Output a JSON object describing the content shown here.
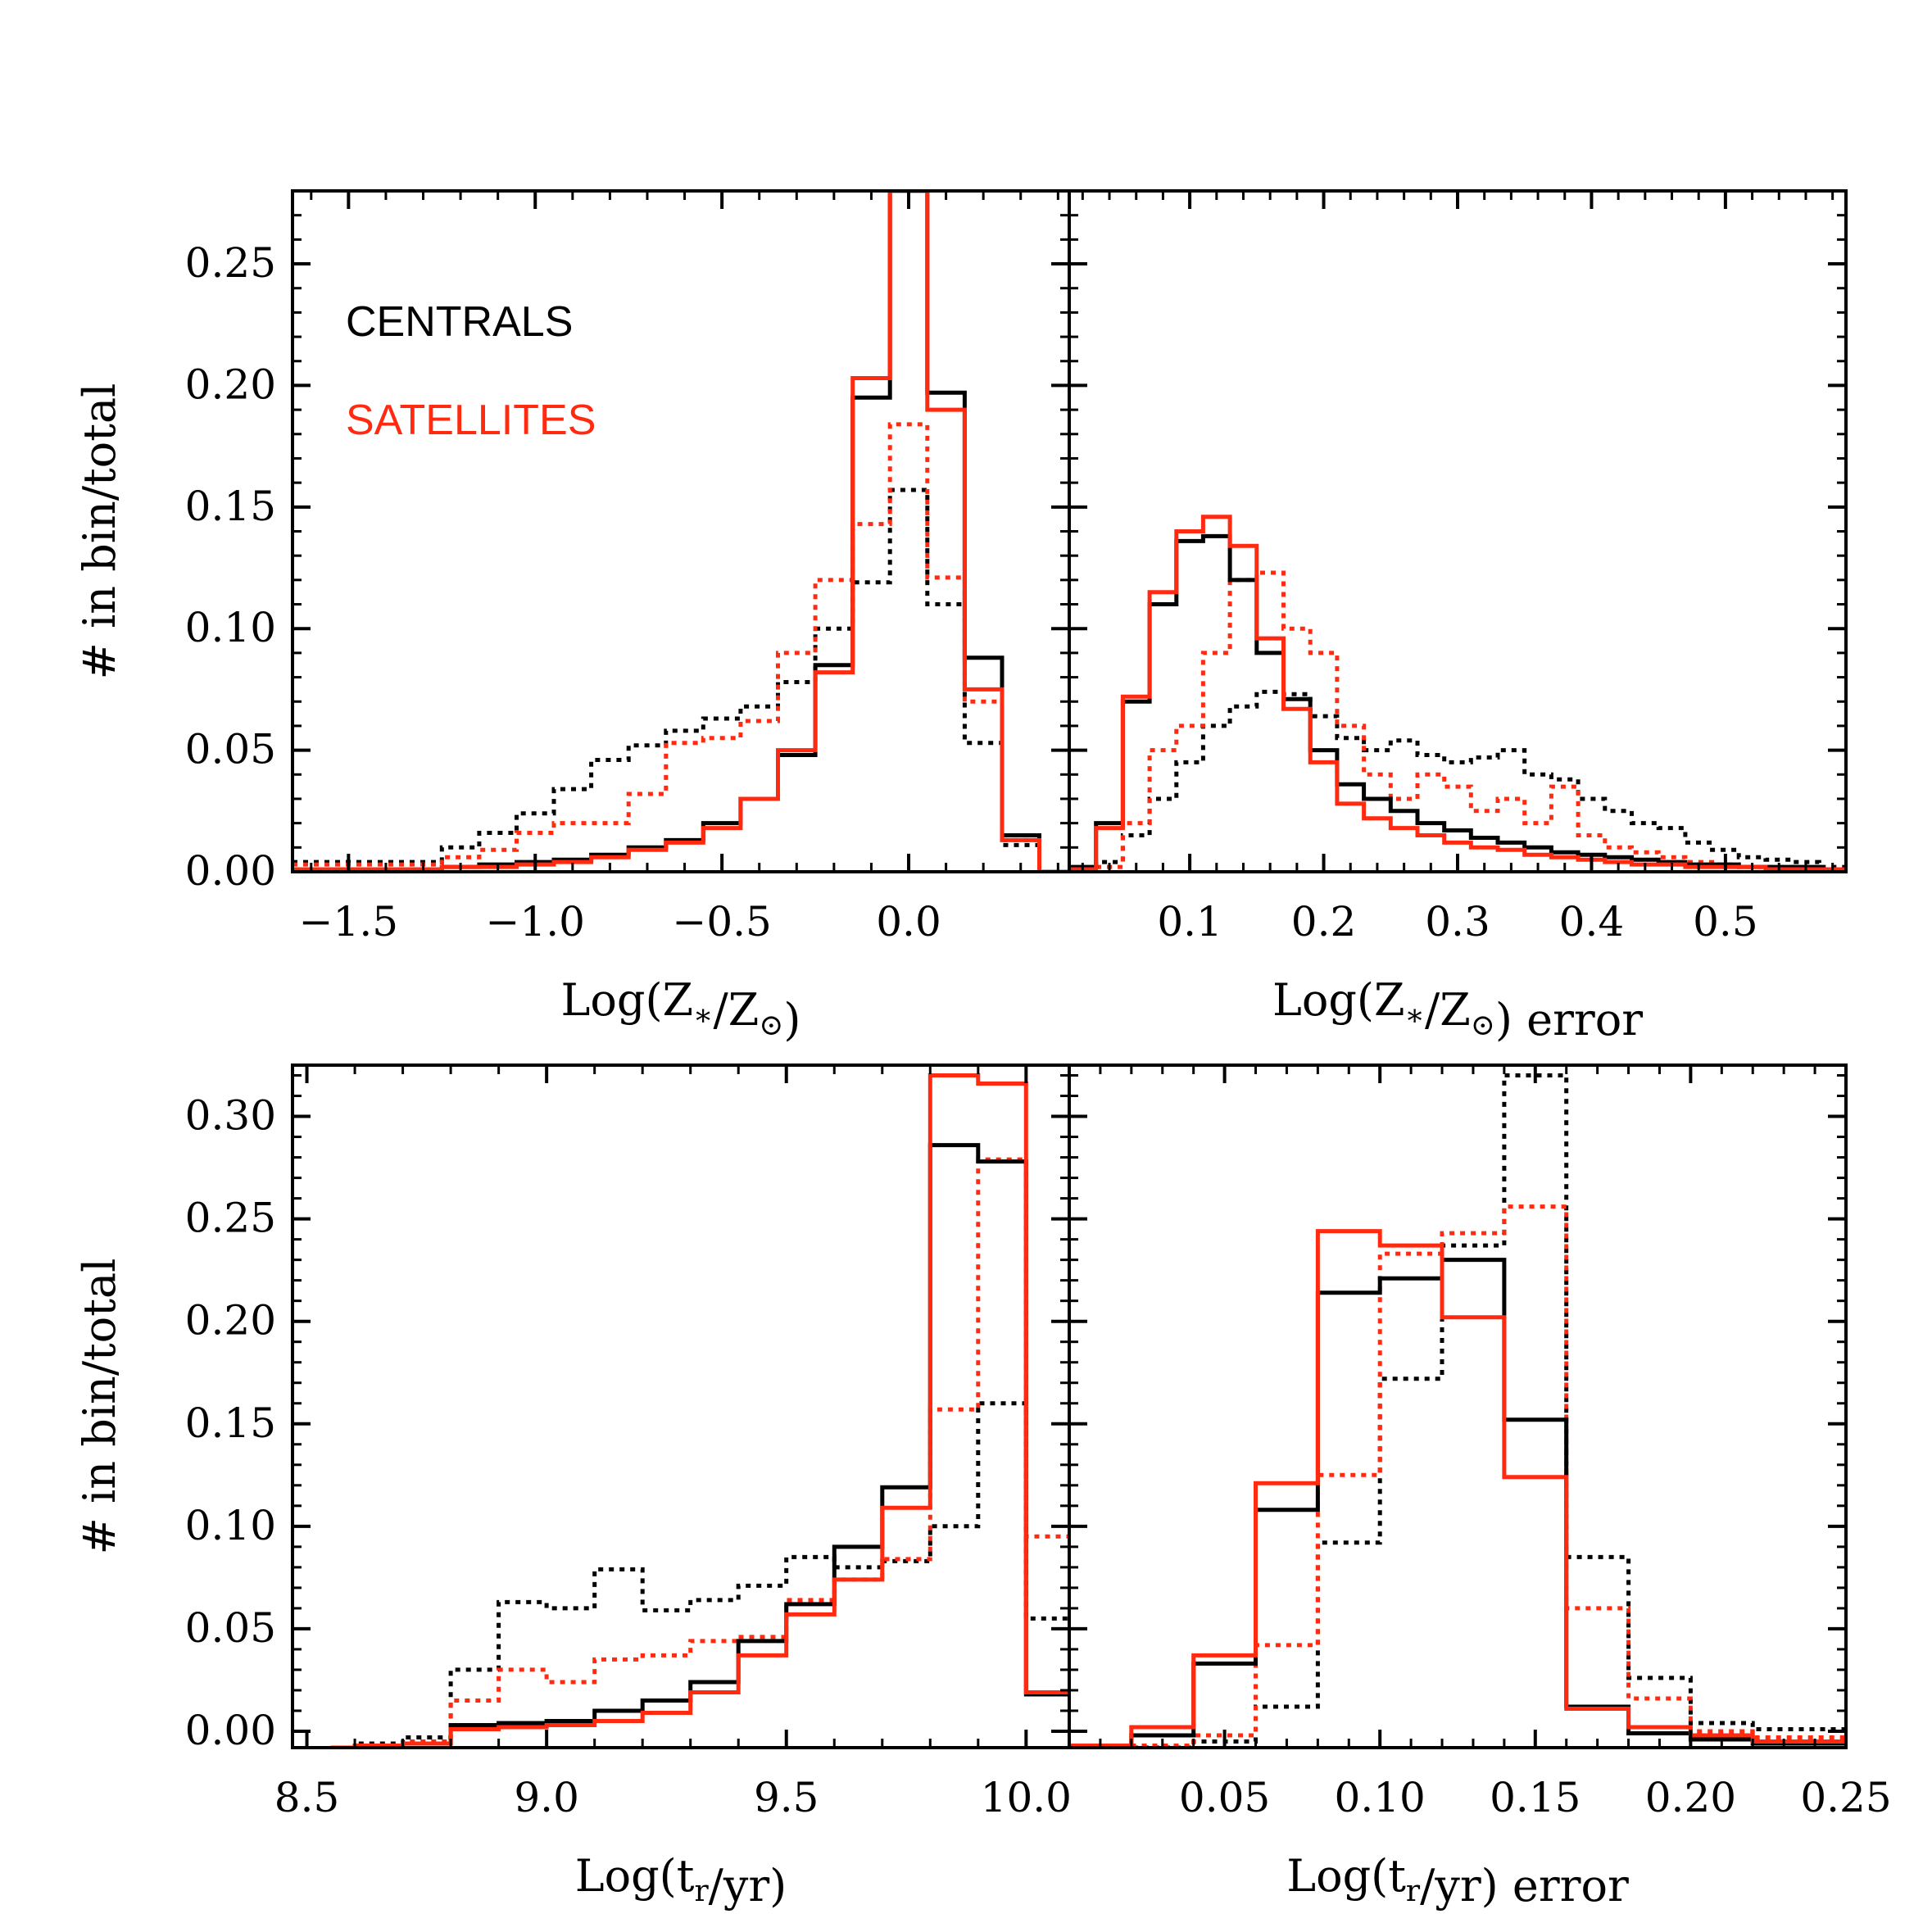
{
  "colors": {
    "centrals": "#000000",
    "satellites": "#ff2a10",
    "axes": "#000000"
  },
  "legend": {
    "entries": [
      "CENTRALS",
      "SATELLITES"
    ],
    "colors": [
      "#000000",
      "#ff2a10"
    ],
    "placement": "top-left"
  },
  "chart_data": [
    {
      "type": "histogram",
      "panel": "top-left",
      "xlabel": "Log(Z∗/Z⊙)",
      "ylabel": "# in bin/total",
      "xlim": [
        -1.65,
        0.43
      ],
      "ylim": [
        0.0,
        0.28
      ],
      "xticks": [
        -1.5,
        -1.0,
        -0.5,
        0.0
      ],
      "xtick_labels": [
        "−1.5",
        "−1.0",
        "−0.5",
        "0.0"
      ],
      "yticks": [
        0.0,
        0.05,
        0.1,
        0.15,
        0.2,
        0.25
      ],
      "ytick_labels": [
        "0.00",
        "0.05",
        "0.10",
        "0.15",
        "0.20",
        "0.25"
      ],
      "edges": [
        -1.65,
        -1.25,
        -1.15,
        -1.05,
        -0.95,
        -0.85,
        -0.75,
        -0.65,
        -0.55,
        -0.45,
        -0.35,
        -0.25,
        -0.15,
        -0.05,
        0.05,
        0.15,
        0.25,
        0.35,
        0.43
      ],
      "series": [
        {
          "name": "centrals solid",
          "color": "#000000",
          "style": "solid",
          "values": [
            0.001,
            0.002,
            0.003,
            0.004,
            0.005,
            0.007,
            0.01,
            0.013,
            0.02,
            0.03,
            0.048,
            0.085,
            0.195,
            0.28,
            0.197,
            0.088,
            0.015,
            0.0
          ]
        },
        {
          "name": "centrals dotted",
          "color": "#000000",
          "style": "dotted",
          "values": [
            0.004,
            0.01,
            0.016,
            0.024,
            0.034,
            0.046,
            0.052,
            0.058,
            0.063,
            0.068,
            0.078,
            0.1,
            0.119,
            0.157,
            0.11,
            0.053,
            0.011,
            0.0
          ]
        },
        {
          "name": "satellites solid",
          "color": "#ff2a10",
          "style": "solid",
          "values": [
            0.001,
            0.002,
            0.002,
            0.003,
            0.004,
            0.006,
            0.009,
            0.012,
            0.018,
            0.03,
            0.05,
            0.082,
            0.203,
            0.28,
            0.19,
            0.075,
            0.013,
            0.0
          ]
        },
        {
          "name": "satellites dotted",
          "color": "#ff2a10",
          "style": "dotted",
          "values": [
            0.003,
            0.006,
            0.009,
            0.016,
            0.02,
            0.02,
            0.032,
            0.053,
            0.055,
            0.062,
            0.09,
            0.12,
            0.143,
            0.184,
            0.121,
            0.07,
            0.013,
            0.0
          ]
        }
      ]
    },
    {
      "type": "histogram",
      "panel": "top-right",
      "xlabel": "Log(Z∗/Z⊙) error",
      "ylabel": "",
      "xlim": [
        0.01,
        0.59
      ],
      "ylim": [
        0.0,
        0.28
      ],
      "xticks": [
        0.1,
        0.2,
        0.3,
        0.4,
        0.5
      ],
      "xtick_labels": [
        "0.1",
        "0.2",
        "0.3",
        "0.4",
        "0.5"
      ],
      "yticks": [
        0.0,
        0.05,
        0.1,
        0.15,
        0.2,
        0.25
      ],
      "ytick_labels": [],
      "edges": [
        0.01,
        0.03,
        0.05,
        0.07,
        0.09,
        0.11,
        0.13,
        0.15,
        0.17,
        0.19,
        0.21,
        0.23,
        0.25,
        0.27,
        0.29,
        0.31,
        0.33,
        0.35,
        0.37,
        0.39,
        0.41,
        0.43,
        0.45,
        0.47,
        0.49,
        0.51,
        0.53,
        0.55,
        0.57,
        0.59
      ],
      "series": [
        {
          "name": "centrals solid",
          "color": "#000000",
          "style": "solid",
          "values": [
            0.002,
            0.02,
            0.07,
            0.11,
            0.136,
            0.138,
            0.12,
            0.09,
            0.071,
            0.05,
            0.036,
            0.03,
            0.025,
            0.02,
            0.017,
            0.014,
            0.012,
            0.01,
            0.008,
            0.007,
            0.006,
            0.005,
            0.004,
            0.003,
            0.003,
            0.002,
            0.002,
            0.002,
            0.001
          ]
        },
        {
          "name": "centrals dotted",
          "color": "#000000",
          "style": "dotted",
          "values": [
            0.0,
            0.004,
            0.015,
            0.03,
            0.045,
            0.06,
            0.068,
            0.074,
            0.073,
            0.064,
            0.055,
            0.05,
            0.054,
            0.048,
            0.045,
            0.047,
            0.05,
            0.04,
            0.038,
            0.03,
            0.025,
            0.02,
            0.018,
            0.012,
            0.009,
            0.006,
            0.005,
            0.004,
            0.002
          ]
        },
        {
          "name": "satellites solid",
          "color": "#ff2a10",
          "style": "solid",
          "values": [
            0.001,
            0.018,
            0.072,
            0.115,
            0.14,
            0.146,
            0.134,
            0.096,
            0.067,
            0.045,
            0.028,
            0.022,
            0.018,
            0.015,
            0.012,
            0.01,
            0.009,
            0.007,
            0.006,
            0.005,
            0.004,
            0.003,
            0.003,
            0.002,
            0.002,
            0.002,
            0.001,
            0.001,
            0.001
          ]
        },
        {
          "name": "satellites dotted",
          "color": "#ff2a10",
          "style": "dotted",
          "values": [
            0.0,
            0.002,
            0.02,
            0.05,
            0.06,
            0.09,
            0.12,
            0.123,
            0.1,
            0.09,
            0.06,
            0.04,
            0.03,
            0.04,
            0.035,
            0.025,
            0.03,
            0.02,
            0.035,
            0.015,
            0.01,
            0.008,
            0.006,
            0.004,
            0.003,
            0.002,
            0.002,
            0.001,
            0.001
          ]
        }
      ]
    },
    {
      "type": "histogram",
      "panel": "bottom-left",
      "xlabel": "Log(tr/yr)",
      "ylabel": "# in bin/total",
      "xlim": [
        8.47,
        10.09
      ],
      "ylim": [
        -0.008,
        0.325
      ],
      "xticks": [
        8.5,
        9.0,
        9.5,
        10.0
      ],
      "xtick_labels": [
        "8.5",
        "9.0",
        "9.5",
        "10.0"
      ],
      "yticks": [
        0.0,
        0.05,
        0.1,
        0.15,
        0.2,
        0.25,
        0.3
      ],
      "ytick_labels": [
        "0.00",
        "0.05",
        "0.10",
        "0.15",
        "0.20",
        "0.25",
        "0.30"
      ],
      "edges": [
        8.55,
        8.6,
        8.7,
        8.8,
        8.9,
        9.0,
        9.1,
        9.2,
        9.3,
        9.4,
        9.5,
        9.6,
        9.7,
        9.8,
        9.9,
        10.0,
        10.09
      ],
      "series": [
        {
          "name": "centrals solid",
          "color": "#000000",
          "style": "solid",
          "values": [
            -0.008,
            -0.007,
            -0.006,
            0.003,
            0.004,
            0.005,
            0.01,
            0.015,
            0.024,
            0.044,
            0.062,
            0.09,
            0.119,
            0.286,
            0.278,
            0.018
          ]
        },
        {
          "name": "centrals dotted",
          "color": "#000000",
          "style": "dotted",
          "values": [
            -0.008,
            -0.006,
            -0.003,
            0.03,
            0.063,
            0.06,
            0.079,
            0.059,
            0.064,
            0.071,
            0.085,
            0.08,
            0.083,
            0.1,
            0.16,
            0.055
          ]
        },
        {
          "name": "satellites solid",
          "color": "#ff2a10",
          "style": "solid",
          "values": [
            -0.008,
            -0.007,
            -0.006,
            0.001,
            0.002,
            0.003,
            0.005,
            0.009,
            0.019,
            0.037,
            0.057,
            0.074,
            0.109,
            0.32,
            0.316,
            0.019
          ]
        },
        {
          "name": "satellites dotted",
          "color": "#ff2a10",
          "style": "dotted",
          "values": [
            -0.008,
            -0.007,
            -0.005,
            0.015,
            0.03,
            0.024,
            0.035,
            0.037,
            0.044,
            0.046,
            0.064,
            0.074,
            0.084,
            0.157,
            0.279,
            0.095
          ]
        }
      ]
    },
    {
      "type": "histogram",
      "panel": "bottom-right",
      "xlabel": "Log(tr/yr) error",
      "ylabel": "",
      "xlim": [
        0.0,
        0.25
      ],
      "ylim": [
        -0.008,
        0.325
      ],
      "xticks": [
        0.05,
        0.1,
        0.15,
        0.2,
        0.25
      ],
      "xtick_labels": [
        "0.05",
        "0.10",
        "0.15",
        "0.20",
        "0.25"
      ],
      "yticks": [
        0.0,
        0.05,
        0.1,
        0.15,
        0.2,
        0.25,
        0.3
      ],
      "ytick_labels": [],
      "edges": [
        0.0,
        0.02,
        0.04,
        0.06,
        0.08,
        0.1,
        0.12,
        0.14,
        0.16,
        0.18,
        0.2,
        0.22,
        0.25
      ],
      "series": [
        {
          "name": "centrals solid",
          "color": "#000000",
          "style": "solid",
          "values": [
            -0.007,
            -0.002,
            0.033,
            0.108,
            0.214,
            0.221,
            0.23,
            0.152,
            0.012,
            -0.001,
            -0.004,
            -0.006
          ]
        },
        {
          "name": "centrals dotted",
          "color": "#000000",
          "style": "dotted",
          "values": [
            -0.008,
            -0.008,
            -0.005,
            0.012,
            0.092,
            0.172,
            0.237,
            0.32,
            0.085,
            0.026,
            0.004,
            0.001
          ]
        },
        {
          "name": "satellites solid",
          "color": "#ff2a10",
          "style": "solid",
          "values": [
            -0.007,
            0.002,
            0.037,
            0.121,
            0.244,
            0.237,
            0.202,
            0.124,
            0.011,
            0.002,
            -0.002,
            -0.005
          ]
        },
        {
          "name": "satellites dotted",
          "color": "#ff2a10",
          "style": "dotted",
          "values": [
            -0.008,
            -0.007,
            -0.002,
            0.042,
            0.125,
            0.233,
            0.243,
            0.256,
            0.06,
            0.016,
            0.0,
            -0.003
          ]
        }
      ]
    }
  ]
}
